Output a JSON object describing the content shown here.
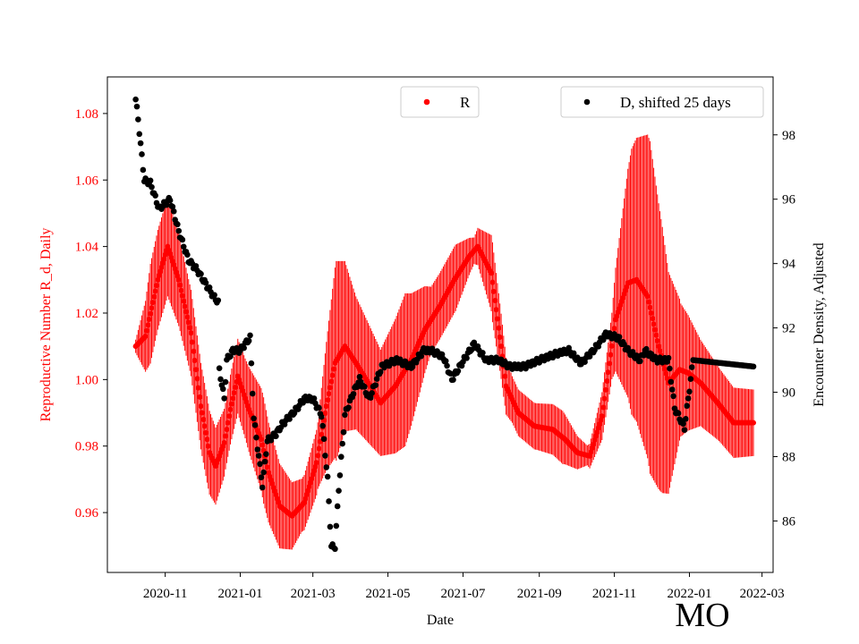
{
  "chart_data": {
    "type": "scatter",
    "title": "",
    "watermark": "MO",
    "xlabel": "Date",
    "ylabel_left": "Reproductive Number R_d, Daily",
    "ylabel_right": "Encounter Density, Adjusted",
    "xlim": [
      "2020-09-15",
      "2022-03-10"
    ],
    "ylim_left": [
      0.942,
      1.091
    ],
    "ylim_right": [
      84.4,
      99.8
    ],
    "x_ticks": [
      "2020-11",
      "2021-01",
      "2021-03",
      "2021-05",
      "2021-07",
      "2021-09",
      "2021-11",
      "2022-01",
      "2022-03"
    ],
    "y_ticks_left": [
      "0.96",
      "0.98",
      "1.00",
      "1.02",
      "1.04",
      "1.06",
      "1.08"
    ],
    "y_ticks_right": [
      "86",
      "88",
      "90",
      "92",
      "94",
      "96",
      "98"
    ],
    "colors": {
      "R": "#ff0000",
      "D": "#000000",
      "left_axis_text": "#ff0000"
    },
    "series": [
      {
        "name": "R",
        "legend_label": "R",
        "legend_position": "top-center",
        "axis": "left",
        "marker": "dot",
        "errorbars": true,
        "start_date": "2020-10-08",
        "end_date": "2022-02-22",
        "anchors_date": [
          "2020-10-08",
          "2020-10-16",
          "2020-10-26",
          "2020-11-03",
          "2020-11-12",
          "2020-11-22",
          "2020-11-30",
          "2020-12-07",
          "2020-12-12",
          "2020-12-19",
          "2020-12-24",
          "2020-12-30",
          "2021-01-08",
          "2021-01-18",
          "2021-01-24",
          "2021-02-02",
          "2021-02-12",
          "2021-02-22",
          "2021-03-04",
          "2021-03-12",
          "2021-03-19",
          "2021-03-27",
          "2021-04-05",
          "2021-04-15",
          "2021-04-25",
          "2021-05-07",
          "2021-05-20",
          "2021-05-31",
          "2021-06-12",
          "2021-06-24",
          "2021-07-06",
          "2021-07-13",
          "2021-07-24",
          "2021-08-01",
          "2021-08-05",
          "2021-08-15",
          "2021-08-28",
          "2021-09-12",
          "2021-09-22",
          "2021-10-02",
          "2021-10-12",
          "2021-10-22",
          "2021-11-02",
          "2021-11-12",
          "2021-11-19",
          "2021-11-28",
          "2021-12-07",
          "2021-12-15",
          "2021-12-24",
          "2021-12-31",
          "2022-01-10",
          "2022-01-24",
          "2022-02-06",
          "2022-02-22"
        ],
        "anchors_value": [
          1.01,
          1.013,
          1.03,
          1.04,
          1.03,
          1.014,
          0.992,
          0.978,
          0.974,
          0.981,
          0.991,
          1.001,
          0.991,
          0.982,
          0.972,
          0.962,
          0.959,
          0.963,
          0.975,
          0.992,
          1.005,
          1.01,
          1.005,
          0.999,
          0.993,
          0.998,
          1.006,
          1.015,
          1.022,
          1.03,
          1.037,
          1.04,
          1.032,
          1.01,
          0.998,
          0.99,
          0.986,
          0.985,
          0.982,
          0.978,
          0.977,
          0.989,
          1.018,
          1.029,
          1.03,
          1.025,
          1.01,
          0.999,
          1.003,
          1.002,
          0.999,
          0.993,
          0.987,
          0.987
        ],
        "errorbar_anchors_date": [
          "2020-10-08",
          "2020-10-20",
          "2020-11-03",
          "2020-11-20",
          "2020-12-05",
          "2020-12-20",
          "2021-01-05",
          "2021-01-20",
          "2021-02-05",
          "2021-02-20",
          "2021-03-05",
          "2021-03-20",
          "2021-04-05",
          "2021-04-25",
          "2021-05-15",
          "2021-06-05",
          "2021-06-25",
          "2021-07-10",
          "2021-07-25",
          "2021-08-10",
          "2021-08-30",
          "2021-09-20",
          "2021-10-10",
          "2021-10-30",
          "2021-11-15",
          "2021-11-30",
          "2021-12-10",
          "2021-12-25",
          "2022-01-10",
          "2022-01-25",
          "2022-02-22"
        ],
        "errorbar_halfwidth": [
          0.002,
          0.015,
          0.015,
          0.013,
          0.013,
          0.01,
          0.012,
          0.016,
          0.012,
          0.008,
          0.01,
          0.03,
          0.02,
          0.016,
          0.023,
          0.01,
          0.01,
          0.004,
          0.012,
          0.007,
          0.007,
          0.008,
          0.003,
          0.01,
          0.04,
          0.05,
          0.04,
          0.02,
          0.013,
          0.011,
          0.01
        ]
      },
      {
        "name": "D, shifted 25 days",
        "legend_label": "D, shifted 25 days",
        "legend_position": "top-right",
        "axis": "right",
        "marker": "dot",
        "start_date": "2020-10-08",
        "end_date": "2022-02-22",
        "anchors_date": [
          "2020-10-08",
          "2020-10-10",
          "2020-10-12",
          "2020-10-15",
          "2020-10-20",
          "2020-10-27",
          "2020-11-05",
          "2020-11-12",
          "2020-11-20",
          "2020-11-27",
          "2020-12-05",
          "2020-12-10",
          "2020-12-14",
          "2020-12-15",
          "2020-12-19",
          "2020-12-21",
          "2020-12-26",
          "2021-01-01",
          "2021-01-09",
          "2021-01-12",
          "2021-01-19",
          "2021-01-23",
          "2021-01-30",
          "2021-02-04",
          "2021-02-14",
          "2021-02-22",
          "2021-03-01",
          "2021-03-08",
          "2021-03-13",
          "2021-03-16",
          "2021-03-19",
          "2021-03-22",
          "2021-03-27",
          "2021-04-03",
          "2021-04-08",
          "2021-04-16",
          "2021-04-26",
          "2021-05-08",
          "2021-05-20",
          "2021-05-30",
          "2021-06-05",
          "2021-06-15",
          "2021-06-22",
          "2021-06-30",
          "2021-07-10",
          "2021-07-20",
          "2021-07-30",
          "2021-08-08",
          "2021-08-20",
          "2021-09-01",
          "2021-09-15",
          "2021-09-25",
          "2021-10-05",
          "2021-10-15",
          "2021-10-25",
          "2021-11-04",
          "2021-11-12",
          "2021-11-22",
          "2021-11-26",
          "2021-12-05",
          "2021-12-15",
          "2021-12-20",
          "2021-12-28",
          "2022-01-04",
          "2022-02-22"
        ],
        "anchors_value": [
          99.1,
          98.5,
          97.7,
          96.6,
          96.5,
          95.7,
          96.0,
          95.0,
          94.1,
          93.8,
          93.3,
          93.0,
          92.8,
          90.7,
          89.8,
          91.0,
          91.3,
          91.3,
          91.7,
          89.2,
          87.1,
          88.5,
          88.7,
          89.0,
          89.4,
          89.8,
          89.8,
          89.3,
          87.3,
          85.2,
          85.2,
          87.0,
          89.3,
          90.0,
          90.4,
          89.8,
          90.8,
          91.0,
          90.8,
          91.3,
          91.3,
          91.1,
          90.4,
          90.9,
          91.5,
          91.0,
          91.0,
          90.8,
          90.8,
          91.0,
          91.2,
          91.3,
          90.9,
          91.3,
          91.8,
          91.7,
          91.3,
          91.0,
          91.3,
          91.0,
          91.0,
          89.5,
          88.9,
          91.0,
          90.8
        ],
        "note": "A faint zigzag (about ±0.1) rides on the D track between anchors."
      }
    ]
  }
}
